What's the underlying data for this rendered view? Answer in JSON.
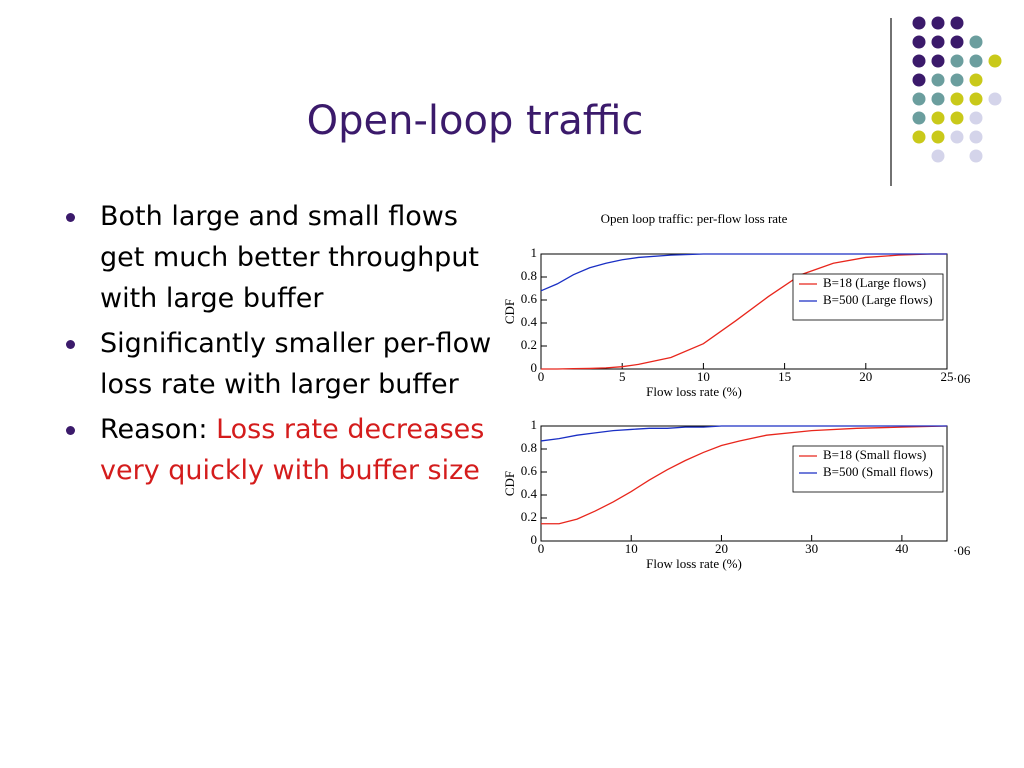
{
  "slide": {
    "title": "Open-loop traffic",
    "bullets": [
      "Both large and small flows get much better throughput with large buffer",
      "Significantly smaller per-flow loss rate with larger buffer"
    ],
    "reason": {
      "lead": "Reason:",
      "highlight": "Loss rate decreases very quickly with buffer size"
    }
  },
  "chart_data": [
    {
      "type": "line",
      "title": "Open loop traffic: per-flow loss rate",
      "x_label": "Flow loss rate (%)",
      "y_label": "CDF",
      "x_exponent_label": "·06",
      "x": [
        0,
        1,
        2,
        3,
        4,
        5,
        6,
        8,
        10,
        12,
        14,
        16,
        18,
        20,
        22,
        24,
        25
      ],
      "series": [
        {
          "name": "B=18 (Large flows)",
          "color": "#e8261c",
          "values": [
            0,
            0,
            0.003,
            0.005,
            0.01,
            0.02,
            0.04,
            0.1,
            0.22,
            0.42,
            0.63,
            0.82,
            0.92,
            0.97,
            0.99,
            1,
            1
          ]
        },
        {
          "name": "B=500 (Large flows)",
          "color": "#1a2fc4",
          "values": [
            0.68,
            0.74,
            0.82,
            0.88,
            0.92,
            0.95,
            0.97,
            0.99,
            1,
            1,
            1,
            1,
            1,
            1,
            1,
            1,
            1
          ]
        }
      ],
      "xlim": [
        0,
        25
      ],
      "xticks": [
        0,
        5,
        10,
        15,
        20,
        25
      ],
      "ylim": [
        0,
        1
      ],
      "yticks": [
        0,
        0.2,
        0.4,
        0.6,
        0.8,
        1
      ],
      "legend": "upper right"
    },
    {
      "type": "line",
      "x_label": "Flow loss rate (%)",
      "y_label": "CDF",
      "x_exponent_label": "·06",
      "x": [
        0,
        2,
        4,
        6,
        8,
        10,
        12,
        14,
        16,
        18,
        20,
        22,
        25,
        30,
        35,
        40,
        45
      ],
      "series": [
        {
          "name": "B=18 (Small flows)",
          "color": "#e8261c",
          "values": [
            0.15,
            0.15,
            0.19,
            0.26,
            0.34,
            0.43,
            0.53,
            0.62,
            0.7,
            0.77,
            0.83,
            0.87,
            0.92,
            0.96,
            0.98,
            0.99,
            1
          ]
        },
        {
          "name": "B=500 (Small flows)",
          "color": "#1a2fc4",
          "values": [
            0.87,
            0.89,
            0.92,
            0.94,
            0.96,
            0.97,
            0.98,
            0.98,
            0.99,
            0.99,
            1,
            1,
            1,
            1,
            1,
            1,
            1
          ]
        }
      ],
      "xlim": [
        0,
        45
      ],
      "xticks": [
        0,
        10,
        20,
        30,
        40
      ],
      "ylim": [
        0,
        1
      ],
      "yticks": [
        0,
        0.2,
        0.4,
        0.6,
        0.8,
        1
      ],
      "legend": "upper right"
    }
  ]
}
